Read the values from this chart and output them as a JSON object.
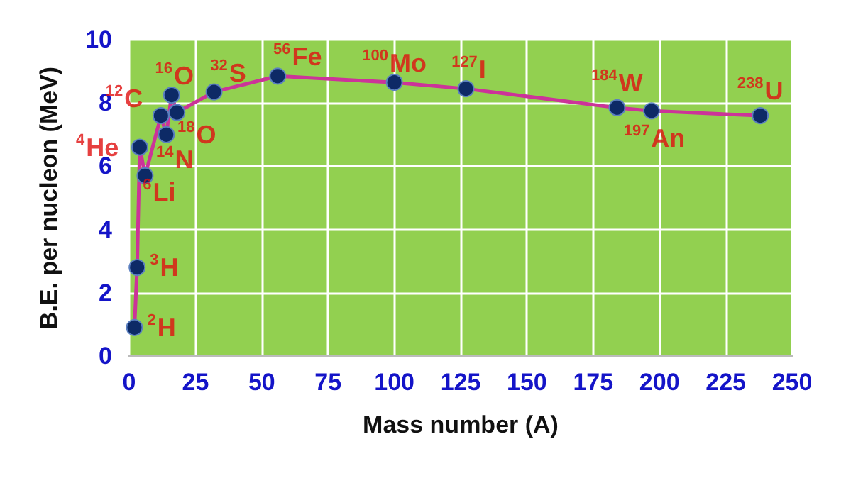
{
  "chart_data": {
    "type": "line",
    "xlabel": "Mass number (A)",
    "ylabel": "B.E. per nucleon (MeV)",
    "x": [
      2,
      3,
      4,
      6,
      12,
      14,
      16,
      18,
      32,
      56,
      100,
      127,
      184,
      197,
      238
    ],
    "series": [
      {
        "color": "#cc3399",
        "values": [
          0.9,
          2.8,
          6.6,
          5.7,
          7.6,
          7.0,
          8.25,
          7.7,
          8.35,
          8.85,
          8.65,
          8.45,
          7.85,
          7.75,
          7.6
        ]
      }
    ],
    "xlim": [
      0,
      250
    ],
    "xticks": [
      0,
      25,
      50,
      75,
      100,
      125,
      150,
      175,
      200,
      225,
      250
    ],
    "ylim": [
      0,
      10
    ],
    "yticks": [
      0,
      2,
      4,
      6,
      8,
      10
    ],
    "grid": true,
    "marker": "circle",
    "annotations": [
      {
        "text": "$^{2}$H",
        "x": 2,
        "y": 0.9
      },
      {
        "text": "$^{3}$H",
        "x": 3,
        "y": 2.8
      },
      {
        "text": "$^{4}$He",
        "x": 4,
        "y": 6.6
      },
      {
        "text": "$^{6}$Li",
        "x": 6,
        "y": 5.7
      },
      {
        "text": "$^{12}$C",
        "x": 12,
        "y": 7.6
      },
      {
        "text": "$^{14}$N",
        "x": 14,
        "y": 7.0
      },
      {
        "text": "$^{16}$O",
        "x": 16,
        "y": 8.25
      },
      {
        "text": "$^{18}$O",
        "x": 18,
        "y": 7.7
      },
      {
        "text": "$^{32}$S",
        "x": 32,
        "y": 8.35
      },
      {
        "text": "$^{56}$Fe",
        "x": 56,
        "y": 8.85
      },
      {
        "text": "$^{100}$Mo",
        "x": 100,
        "y": 8.65
      },
      {
        "text": "$^{127}$I",
        "x": 127,
        "y": 8.45
      },
      {
        "text": "$^{184}$W",
        "x": 184,
        "y": 7.85
      },
      {
        "text": "$^{197}$An",
        "x": 197,
        "y": 7.75
      },
      {
        "text": "$^{238}$U",
        "x": 238,
        "y": 7.6
      }
    ]
  }
}
